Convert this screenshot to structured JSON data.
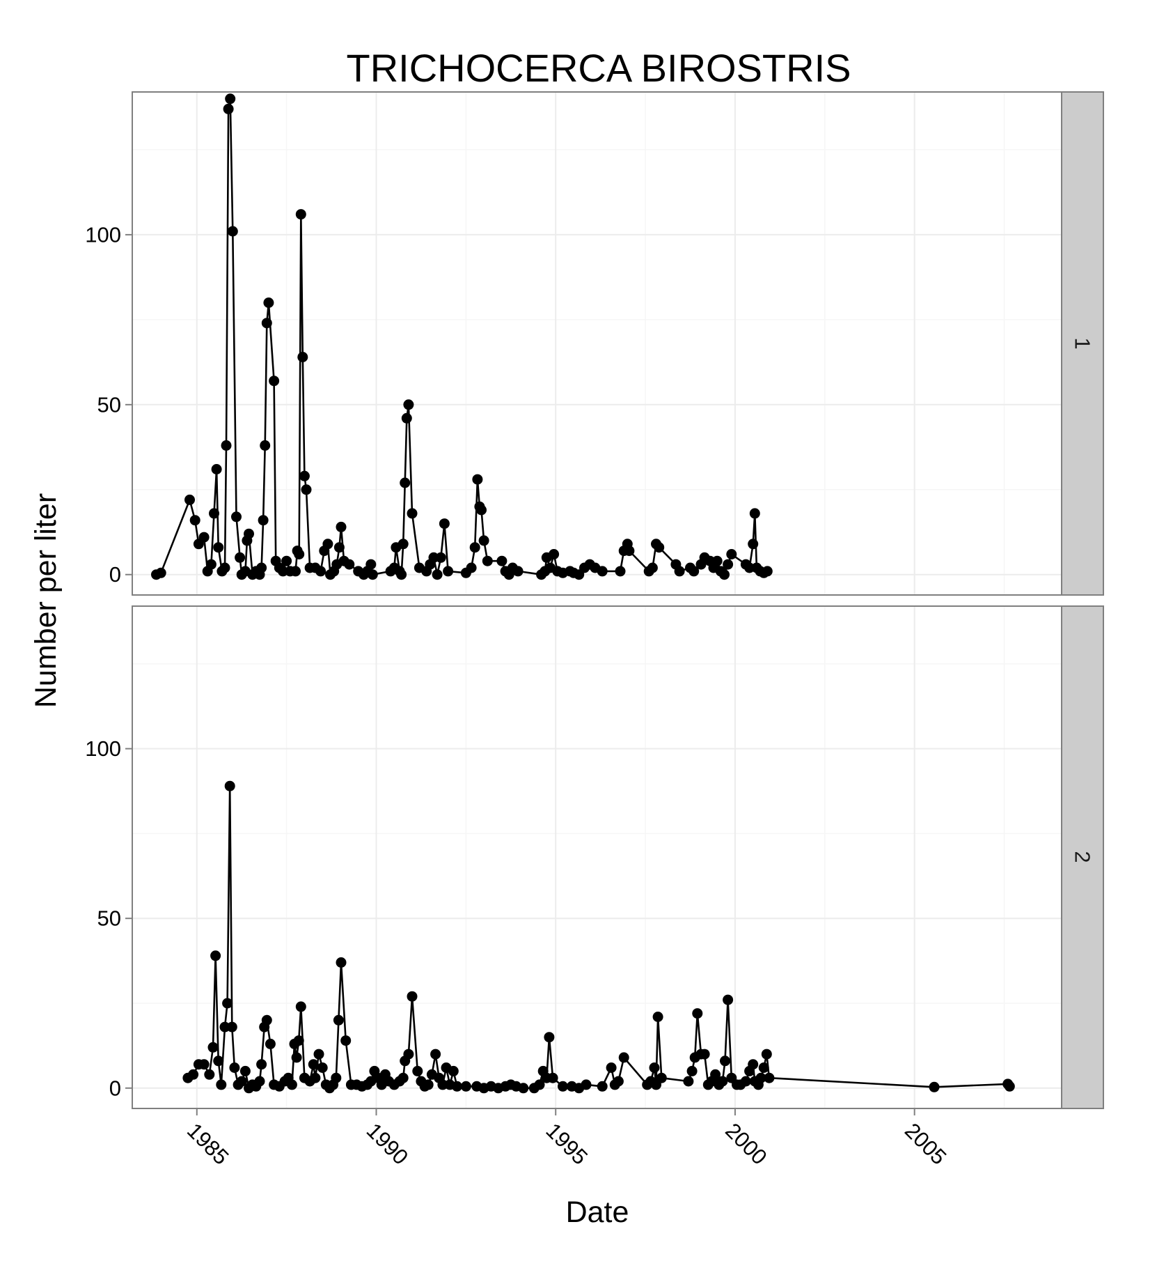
{
  "chart_data": {
    "type": "line",
    "title": "TRICHOCERCA BIROSTRIS",
    "xlabel": "Date",
    "ylabel": "Number per liter",
    "xlim": [
      1983.2,
      2009.1
    ],
    "ylim": [
      -6,
      142
    ],
    "x_ticks": [
      1985,
      1990,
      1995,
      2000,
      2005
    ],
    "x_tick_labels": [
      "1985",
      "1990",
      "1995",
      "2000",
      "2005"
    ],
    "y_ticks": [
      0,
      50,
      100
    ],
    "y_tick_labels": [
      "0",
      "50",
      "100"
    ],
    "grid": true,
    "markers": "filled circles joined by lines",
    "colors": {
      "series": "#000000",
      "strip": "#cccccc",
      "panel_border": "#7f7f7f",
      "grid_major": "#ececec",
      "grid_minor": "#f6f6f6"
    },
    "panels": [
      {
        "strip_label": "1",
        "points": [
          [
            1983.87,
            0
          ],
          [
            1984.0,
            0.5
          ],
          [
            1984.8,
            22
          ],
          [
            1984.95,
            16
          ],
          [
            1985.05,
            9
          ],
          [
            1985.2,
            11
          ],
          [
            1985.3,
            1
          ],
          [
            1985.4,
            3
          ],
          [
            1985.48,
            18
          ],
          [
            1985.55,
            31
          ],
          [
            1985.6,
            8
          ],
          [
            1985.7,
            1
          ],
          [
            1985.78,
            2
          ],
          [
            1985.82,
            38
          ],
          [
            1985.88,
            137
          ],
          [
            1985.93,
            140
          ],
          [
            1986.0,
            101
          ],
          [
            1986.1,
            17
          ],
          [
            1986.2,
            5
          ],
          [
            1986.25,
            0
          ],
          [
            1986.35,
            1
          ],
          [
            1986.4,
            10
          ],
          [
            1986.45,
            12
          ],
          [
            1986.55,
            0
          ],
          [
            1986.65,
            1
          ],
          [
            1986.75,
            0
          ],
          [
            1986.8,
            2
          ],
          [
            1986.85,
            16
          ],
          [
            1986.9,
            38
          ],
          [
            1986.95,
            74
          ],
          [
            1987.0,
            80
          ],
          [
            1987.15,
            57
          ],
          [
            1987.2,
            4
          ],
          [
            1987.3,
            2
          ],
          [
            1987.4,
            1
          ],
          [
            1987.5,
            4
          ],
          [
            1987.6,
            1
          ],
          [
            1987.75,
            1
          ],
          [
            1987.8,
            7
          ],
          [
            1987.85,
            6
          ],
          [
            1987.9,
            106
          ],
          [
            1987.95,
            64
          ],
          [
            1988.0,
            29
          ],
          [
            1988.05,
            25
          ],
          [
            1988.15,
            2
          ],
          [
            1988.3,
            2
          ],
          [
            1988.45,
            1
          ],
          [
            1988.55,
            7
          ],
          [
            1988.65,
            9
          ],
          [
            1988.72,
            0
          ],
          [
            1988.82,
            1
          ],
          [
            1988.9,
            3
          ],
          [
            1988.97,
            8
          ],
          [
            1989.02,
            14
          ],
          [
            1989.1,
            4
          ],
          [
            1989.25,
            3
          ],
          [
            1989.5,
            1
          ],
          [
            1989.65,
            0
          ],
          [
            1989.75,
            1
          ],
          [
            1989.85,
            3
          ],
          [
            1989.9,
            0
          ],
          [
            1990.4,
            1
          ],
          [
            1990.5,
            2
          ],
          [
            1990.55,
            8
          ],
          [
            1990.65,
            1
          ],
          [
            1990.7,
            0
          ],
          [
            1990.75,
            9
          ],
          [
            1990.8,
            27
          ],
          [
            1990.85,
            46
          ],
          [
            1990.9,
            50
          ],
          [
            1991.0,
            18
          ],
          [
            1991.2,
            2
          ],
          [
            1991.4,
            1
          ],
          [
            1991.5,
            3
          ],
          [
            1991.6,
            5
          ],
          [
            1991.7,
            0
          ],
          [
            1991.8,
            5
          ],
          [
            1991.9,
            15
          ],
          [
            1992.0,
            1
          ],
          [
            1992.5,
            0.5
          ],
          [
            1992.65,
            2
          ],
          [
            1992.75,
            8
          ],
          [
            1992.82,
            28
          ],
          [
            1992.88,
            20
          ],
          [
            1992.93,
            19
          ],
          [
            1993.0,
            10
          ],
          [
            1993.1,
            4
          ],
          [
            1993.5,
            4
          ],
          [
            1993.6,
            1
          ],
          [
            1993.7,
            0
          ],
          [
            1993.8,
            2
          ],
          [
            1993.95,
            1
          ],
          [
            1994.6,
            0
          ],
          [
            1994.7,
            1
          ],
          [
            1994.75,
            5
          ],
          [
            1994.85,
            2
          ],
          [
            1994.95,
            6
          ],
          [
            1995.05,
            1
          ],
          [
            1995.2,
            0.5
          ],
          [
            1995.4,
            1
          ],
          [
            1995.5,
            0.5
          ],
          [
            1995.65,
            0
          ],
          [
            1995.8,
            2
          ],
          [
            1995.95,
            3
          ],
          [
            1996.1,
            2
          ],
          [
            1996.3,
            1
          ],
          [
            1996.8,
            1
          ],
          [
            1996.9,
            7
          ],
          [
            1997.0,
            9
          ],
          [
            1997.05,
            7
          ],
          [
            1997.6,
            1
          ],
          [
            1997.7,
            2
          ],
          [
            1997.8,
            9
          ],
          [
            1997.88,
            8
          ],
          [
            1998.35,
            3
          ],
          [
            1998.45,
            1
          ],
          [
            1998.75,
            2
          ],
          [
            1998.85,
            1
          ],
          [
            1999.05,
            3
          ],
          [
            1999.15,
            5
          ],
          [
            1999.3,
            4
          ],
          [
            1999.4,
            2
          ],
          [
            1999.5,
            4
          ],
          [
            1999.6,
            1
          ],
          [
            1999.7,
            0
          ],
          [
            1999.8,
            3
          ],
          [
            1999.9,
            6
          ],
          [
            2000.3,
            3
          ],
          [
            2000.4,
            2
          ],
          [
            2000.5,
            9
          ],
          [
            2000.55,
            18
          ],
          [
            2000.6,
            2
          ],
          [
            2000.7,
            1
          ],
          [
            2000.8,
            0.5
          ],
          [
            2000.9,
            1
          ]
        ]
      },
      {
        "strip_label": "2",
        "points": [
          [
            1984.75,
            3
          ],
          [
            1984.9,
            4
          ],
          [
            1985.05,
            7
          ],
          [
            1985.2,
            7
          ],
          [
            1985.35,
            4
          ],
          [
            1985.45,
            12
          ],
          [
            1985.52,
            39
          ],
          [
            1985.6,
            8
          ],
          [
            1985.68,
            1
          ],
          [
            1985.78,
            18
          ],
          [
            1985.85,
            25
          ],
          [
            1985.92,
            89
          ],
          [
            1985.98,
            18
          ],
          [
            1986.05,
            6
          ],
          [
            1986.15,
            1
          ],
          [
            1986.25,
            2
          ],
          [
            1986.35,
            5
          ],
          [
            1986.45,
            0
          ],
          [
            1986.55,
            1
          ],
          [
            1986.65,
            0.5
          ],
          [
            1986.75,
            2
          ],
          [
            1986.8,
            7
          ],
          [
            1986.88,
            18
          ],
          [
            1986.95,
            20
          ],
          [
            1987.05,
            13
          ],
          [
            1987.15,
            1
          ],
          [
            1987.3,
            0.5
          ],
          [
            1987.45,
            2
          ],
          [
            1987.55,
            3
          ],
          [
            1987.65,
            1
          ],
          [
            1987.72,
            13
          ],
          [
            1987.78,
            9
          ],
          [
            1987.84,
            14
          ],
          [
            1987.9,
            24
          ],
          [
            1988.0,
            3
          ],
          [
            1988.15,
            2
          ],
          [
            1988.25,
            7
          ],
          [
            1988.3,
            3
          ],
          [
            1988.4,
            10
          ],
          [
            1988.5,
            6
          ],
          [
            1988.6,
            1
          ],
          [
            1988.7,
            0
          ],
          [
            1988.8,
            1
          ],
          [
            1988.88,
            3
          ],
          [
            1988.95,
            20
          ],
          [
            1989.02,
            37
          ],
          [
            1989.15,
            14
          ],
          [
            1989.3,
            1
          ],
          [
            1989.45,
            1
          ],
          [
            1989.6,
            0.5
          ],
          [
            1989.75,
            1
          ],
          [
            1989.85,
            2
          ],
          [
            1989.95,
            5
          ],
          [
            1990.05,
            3
          ],
          [
            1990.15,
            1
          ],
          [
            1990.25,
            4
          ],
          [
            1990.35,
            2
          ],
          [
            1990.5,
            1
          ],
          [
            1990.65,
            2
          ],
          [
            1990.75,
            3
          ],
          [
            1990.8,
            8
          ],
          [
            1990.9,
            10
          ],
          [
            1991.0,
            27
          ],
          [
            1991.15,
            5
          ],
          [
            1991.25,
            2
          ],
          [
            1991.35,
            0.5
          ],
          [
            1991.45,
            1
          ],
          [
            1991.55,
            4
          ],
          [
            1991.65,
            10
          ],
          [
            1991.75,
            3
          ],
          [
            1991.85,
            1
          ],
          [
            1991.95,
            6
          ],
          [
            1992.05,
            1
          ],
          [
            1992.15,
            5
          ],
          [
            1992.25,
            0.5
          ],
          [
            1992.5,
            0.5
          ],
          [
            1992.8,
            0.5
          ],
          [
            1993.0,
            0
          ],
          [
            1993.2,
            0.5
          ],
          [
            1993.4,
            0
          ],
          [
            1993.6,
            0.5
          ],
          [
            1993.75,
            1
          ],
          [
            1993.9,
            0.5
          ],
          [
            1994.1,
            0
          ],
          [
            1994.4,
            0
          ],
          [
            1994.55,
            1
          ],
          [
            1994.65,
            5
          ],
          [
            1994.75,
            3
          ],
          [
            1994.82,
            15
          ],
          [
            1994.92,
            3
          ],
          [
            1995.2,
            0.5
          ],
          [
            1995.45,
            0.5
          ],
          [
            1995.65,
            0
          ],
          [
            1995.85,
            1
          ],
          [
            1996.3,
            0.5
          ],
          [
            1996.55,
            6
          ],
          [
            1996.65,
            1
          ],
          [
            1996.75,
            2
          ],
          [
            1996.9,
            9
          ],
          [
            1997.55,
            1
          ],
          [
            1997.65,
            2
          ],
          [
            1997.75,
            6
          ],
          [
            1997.8,
            1
          ],
          [
            1997.85,
            21
          ],
          [
            1997.95,
            3
          ],
          [
            1998.7,
            2
          ],
          [
            1998.8,
            5
          ],
          [
            1998.88,
            9
          ],
          [
            1998.95,
            22
          ],
          [
            1999.05,
            10
          ],
          [
            1999.15,
            10
          ],
          [
            1999.25,
            1
          ],
          [
            1999.35,
            2
          ],
          [
            1999.45,
            4
          ],
          [
            1999.55,
            1
          ],
          [
            1999.65,
            2
          ],
          [
            1999.72,
            8
          ],
          [
            1999.8,
            26
          ],
          [
            1999.9,
            3
          ],
          [
            2000.05,
            1
          ],
          [
            2000.15,
            1
          ],
          [
            2000.3,
            2
          ],
          [
            2000.4,
            5
          ],
          [
            2000.5,
            7
          ],
          [
            2000.55,
            2
          ],
          [
            2000.65,
            1
          ],
          [
            2000.72,
            3
          ],
          [
            2000.8,
            6
          ],
          [
            2000.88,
            10
          ],
          [
            2000.95,
            3
          ],
          [
            2005.55,
            0.3
          ],
          [
            2007.6,
            1.2
          ],
          [
            2007.65,
            0.5
          ]
        ]
      }
    ]
  }
}
